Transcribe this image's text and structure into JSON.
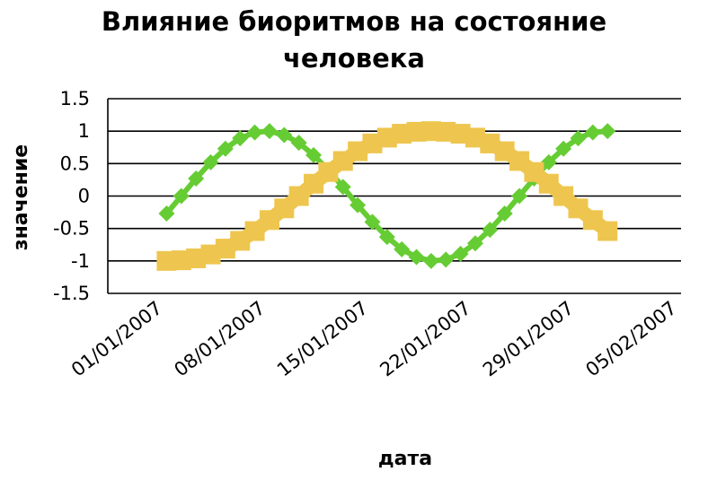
{
  "chart_data": {
    "type": "line",
    "title": "Влияние биоритмов на состояние человека",
    "title_lines": [
      "Влияние биоритмов на состояние",
      "человека"
    ],
    "xlabel": "дата",
    "ylabel": "значение",
    "ylim": [
      -1.5,
      1.5
    ],
    "yticks": [
      "1.5",
      "1",
      "0.5",
      "0",
      "-0.5",
      "-1",
      "-1.5"
    ],
    "ytick_values": [
      1.5,
      1,
      0.5,
      0,
      -0.5,
      -1,
      -1.5
    ],
    "xticks": [
      "01/01/2007",
      "08/01/2007",
      "15/01/2007",
      "22/01/2007",
      "29/01/2007",
      "05/02/2007"
    ],
    "xlim": [
      "2007-01-01",
      "2007-02-09"
    ],
    "grid": true,
    "legend": "none",
    "series": [
      {
        "color": "#66cc33",
        "marker": "diamond",
        "x": [
          "2007-01-05",
          "2007-01-06",
          "2007-01-07",
          "2007-01-08",
          "2007-01-09",
          "2007-01-10",
          "2007-01-11",
          "2007-01-12",
          "2007-01-13",
          "2007-01-14",
          "2007-01-15",
          "2007-01-16",
          "2007-01-17",
          "2007-01-18",
          "2007-01-19",
          "2007-01-20",
          "2007-01-21",
          "2007-01-22",
          "2007-01-23",
          "2007-01-24",
          "2007-01-25",
          "2007-01-26",
          "2007-01-27",
          "2007-01-28",
          "2007-01-29",
          "2007-01-30",
          "2007-01-31",
          "2007-02-01",
          "2007-02-02",
          "2007-02-03",
          "2007-02-04"
        ],
        "values": [
          -0.27,
          0.0,
          0.27,
          0.52,
          0.73,
          0.89,
          0.98,
          1.0,
          0.94,
          0.82,
          0.63,
          0.4,
          0.14,
          -0.14,
          -0.4,
          -0.63,
          -0.82,
          -0.94,
          -1.0,
          -0.98,
          -0.89,
          -0.73,
          -0.52,
          -0.27,
          0.0,
          0.27,
          0.52,
          0.73,
          0.89,
          0.98,
          1.0
        ]
      },
      {
        "color": "#eec64f",
        "marker": "square",
        "x": [
          "2007-01-05",
          "2007-01-06",
          "2007-01-07",
          "2007-01-08",
          "2007-01-09",
          "2007-01-10",
          "2007-01-11",
          "2007-01-12",
          "2007-01-13",
          "2007-01-14",
          "2007-01-15",
          "2007-01-16",
          "2007-01-17",
          "2007-01-18",
          "2007-01-19",
          "2007-01-20",
          "2007-01-21",
          "2007-01-22",
          "2007-01-23",
          "2007-01-24",
          "2007-01-25",
          "2007-01-26",
          "2007-01-27",
          "2007-01-28",
          "2007-01-29",
          "2007-01-30",
          "2007-01-31",
          "2007-02-01",
          "2007-02-02",
          "2007-02-03",
          "2007-02-04"
        ],
        "values": [
          -1.0,
          -0.99,
          -0.96,
          -0.9,
          -0.81,
          -0.69,
          -0.54,
          -0.37,
          -0.19,
          0.0,
          0.19,
          0.37,
          0.54,
          0.69,
          0.81,
          0.9,
          0.96,
          0.99,
          1.0,
          0.99,
          0.96,
          0.9,
          0.81,
          0.69,
          0.54,
          0.37,
          0.19,
          0.0,
          -0.19,
          -0.37,
          -0.54
        ]
      }
    ]
  }
}
